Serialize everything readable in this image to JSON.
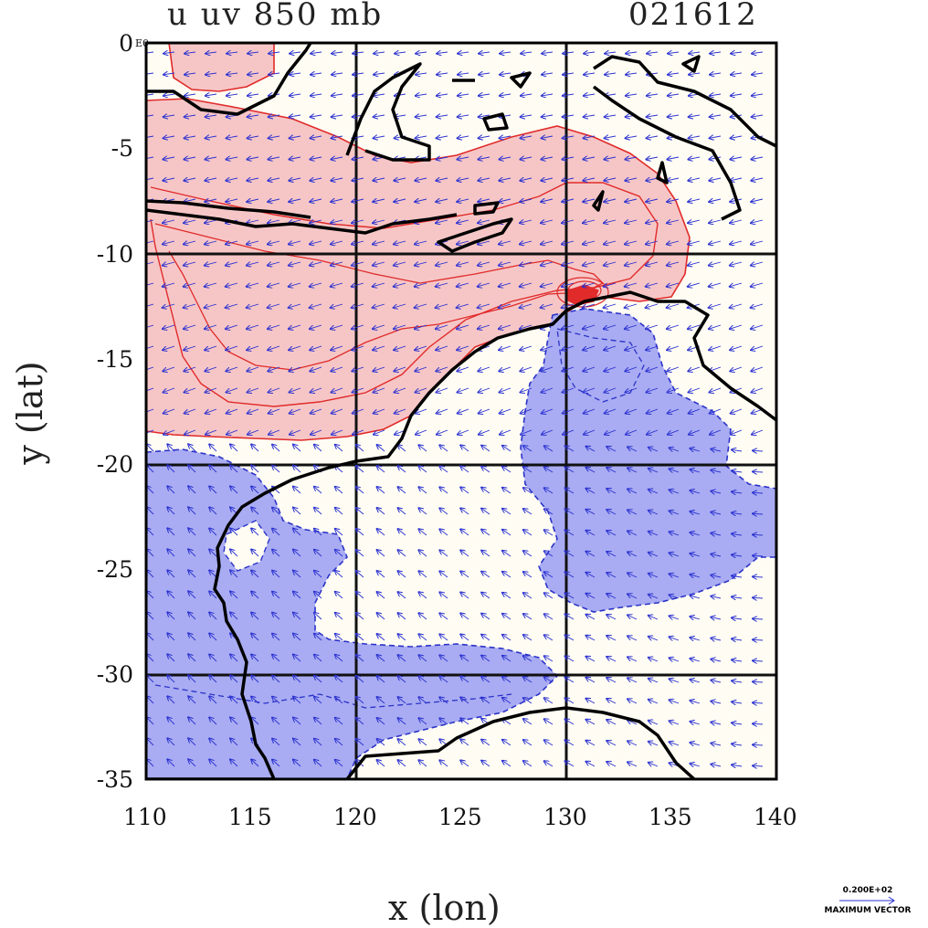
{
  "title": {
    "left": "u uv 850 mb",
    "right": "021612"
  },
  "corner_label": "E0",
  "axes": {
    "xlabel": "x (lon)",
    "ylabel": "y (lat)",
    "xticks": [
      "110",
      "115",
      "120",
      "125",
      "130",
      "135",
      "140"
    ],
    "yticks": [
      "0",
      "-5",
      "-10",
      "-15",
      "-20",
      "-25",
      "-30",
      "-35"
    ],
    "xlim": [
      110,
      140
    ],
    "ylim": [
      -35,
      0
    ]
  },
  "legend": {
    "value": "0.200E+02",
    "label": "MAXIMUM VECTOR"
  },
  "colors": {
    "positive_fill": "#f6c6c6",
    "positive_line": "#e12a2a",
    "negative_fill": "#a9acf2",
    "negative_line": "#2b32c8",
    "vector": "#2a30d0",
    "coast": "#000000",
    "background": "#fffdf3"
  }
}
